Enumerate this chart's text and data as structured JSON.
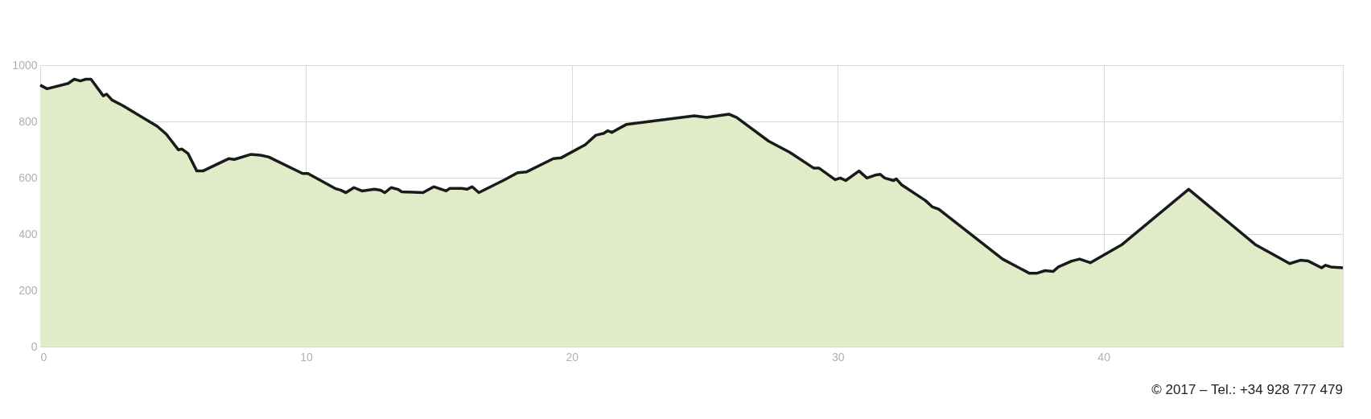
{
  "chart_data": {
    "type": "area",
    "x": [
      0,
      0.26,
      1.05,
      1.28,
      1.51,
      1.71,
      1.91,
      2.37,
      2.5,
      2.7,
      3.09,
      4.4,
      4.74,
      5.2,
      5.33,
      5.56,
      5.89,
      6.12,
      7.1,
      7.3,
      7.93,
      8.29,
      8.59,
      9.87,
      10.07,
      11.09,
      11.3,
      11.5,
      11.8,
      12.1,
      12.57,
      12.8,
      12.96,
      13.2,
      13.45,
      13.6,
      14.4,
      14.8,
      15.27,
      15.4,
      15.86,
      16.05,
      16.25,
      16.5,
      17.47,
      17.96,
      18.3,
      19.3,
      19.6,
      20.5,
      20.9,
      21.2,
      21.35,
      21.5,
      22.04,
      24.6,
      25.07,
      25.9,
      26.2,
      27.4,
      28.2,
      29.1,
      29.3,
      29.9,
      30.1,
      30.3,
      30.8,
      31.1,
      31.4,
      31.6,
      31.77,
      32.1,
      32.2,
      32.4,
      33.3,
      33.55,
      33.8,
      36.2,
      37.2,
      37.5,
      37.8,
      38.1,
      38.3,
      38.8,
      39.1,
      39.5,
      40.7,
      43.2,
      45.7,
      47.0,
      47.4,
      47.7,
      48.2,
      48.35,
      48.55,
      49.0
    ],
    "series": [
      {
        "color": "#e0ecc8",
        "values": [
          929,
          916,
          935,
          950,
          944,
          950,
          950,
          891,
          897,
          876,
          857,
          783,
          755,
          699,
          702,
          686,
          624,
          624,
          668,
          665,
          683,
          680,
          674,
          615,
          615,
          562,
          556,
          547,
          565,
          553,
          559,
          556,
          547,
          565,
          559,
          550,
          547,
          568,
          553,
          562,
          562,
          559,
          568,
          547,
          593,
          618,
          621,
          668,
          671,
          717,
          751,
          758,
          767,
          761,
          789,
          820,
          814,
          826,
          814,
          730,
          690,
          634,
          634,
          593,
          599,
          590,
          624,
          599,
          609,
          612,
          599,
          590,
          596,
          575,
          519,
          497,
          488,
          311,
          261,
          261,
          270,
          267,
          283,
          304,
          311,
          298,
          363,
          559,
          363,
          295,
          307,
          304,
          280,
          289,
          283,
          280
        ]
      }
    ],
    "xlim": [
      0,
      49
    ],
    "xticks": [
      0,
      10,
      20,
      30,
      40
    ],
    "ylim": [
      0,
      1000
    ],
    "yticks": [
      0,
      200,
      400,
      600,
      800,
      1000
    ],
    "grid": true,
    "annotations": [
      "© 2017 – Tel.: +34 928 777 479"
    ]
  }
}
